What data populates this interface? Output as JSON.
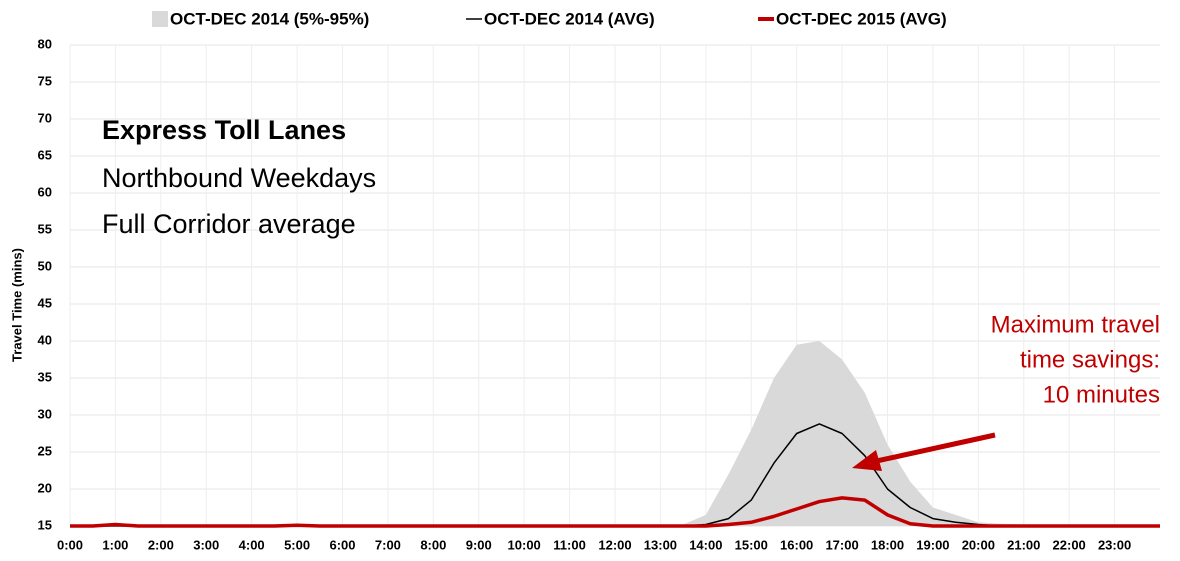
{
  "chart_data": {
    "type": "line",
    "legend": "top",
    "y_label": "Travel Time (mins)",
    "ylim": [
      15,
      80
    ],
    "yticks": [
      15,
      20,
      25,
      30,
      35,
      40,
      45,
      50,
      55,
      60,
      65,
      70,
      75,
      80
    ],
    "xlim": [
      0,
      24
    ],
    "xticks": [
      {
        "value": 0,
        "label": "0:00"
      },
      {
        "value": 1,
        "label": "1:00"
      },
      {
        "value": 2,
        "label": "2:00"
      },
      {
        "value": 3,
        "label": "3:00"
      },
      {
        "value": 4,
        "label": "4:00"
      },
      {
        "value": 5,
        "label": "5:00"
      },
      {
        "value": 6,
        "label": "6:00"
      },
      {
        "value": 7,
        "label": "7:00"
      },
      {
        "value": 8,
        "label": "8:00"
      },
      {
        "value": 9,
        "label": "9:00"
      },
      {
        "value": 10,
        "label": "10:00"
      },
      {
        "value": 11,
        "label": "11:00"
      },
      {
        "value": 12,
        "label": "12:00"
      },
      {
        "value": 13,
        "label": "13:00"
      },
      {
        "value": 14,
        "label": "14:00"
      },
      {
        "value": 15,
        "label": "15:00"
      },
      {
        "value": 16,
        "label": "16:00"
      },
      {
        "value": 17,
        "label": "17:00"
      },
      {
        "value": 18,
        "label": "18:00"
      },
      {
        "value": 19,
        "label": "19:00"
      },
      {
        "value": 20,
        "label": "20:00"
      },
      {
        "value": 21,
        "label": "21:00"
      },
      {
        "value": 22,
        "label": "22:00"
      },
      {
        "value": 23,
        "label": "23:00"
      }
    ],
    "x": [
      0,
      0.5,
      1,
      1.5,
      2,
      2.5,
      3,
      3.5,
      4,
      4.5,
      5,
      5.5,
      6,
      6.5,
      7,
      7.5,
      8,
      8.5,
      9,
      9.5,
      10,
      10.5,
      11,
      11.5,
      12,
      12.5,
      13,
      13.5,
      14,
      14.5,
      15,
      15.5,
      16,
      16.5,
      17,
      17.5,
      18,
      18.5,
      19,
      19.5,
      20,
      20.5,
      21,
      21.5,
      22,
      22.5,
      23,
      23.5,
      24
    ],
    "series": [
      {
        "name": "OCT-DEC 2014 (5%-95%)",
        "color": "#d9d9d9",
        "kind": "band",
        "lower": [
          15,
          15,
          15,
          15,
          15,
          15,
          15,
          15,
          15,
          15,
          15,
          15,
          15,
          15,
          15,
          15,
          15,
          15,
          15,
          15,
          15,
          15,
          15,
          15,
          15,
          15,
          15,
          15,
          15,
          15,
          15,
          15,
          15,
          15,
          15,
          15,
          15,
          15,
          15,
          15,
          15,
          15,
          15,
          15,
          15,
          15,
          15,
          15,
          15
        ],
        "upper": [
          15,
          15,
          15.2,
          15,
          15,
          15,
          15,
          15,
          15,
          15,
          15.2,
          15,
          15,
          15,
          15,
          15,
          15,
          15,
          15,
          15,
          15,
          15,
          15,
          15,
          15,
          15,
          15,
          15.2,
          16.5,
          22,
          28,
          35,
          39.5,
          40,
          37.5,
          33,
          26,
          21,
          17.5,
          16.5,
          15.5,
          15.3,
          15.2,
          15,
          15,
          15,
          15,
          15,
          15
        ]
      },
      {
        "name": "OCT-DEC 2014 (AVG)",
        "color": "#000000",
        "kind": "line",
        "values": [
          15,
          15,
          15,
          15,
          15,
          15,
          15,
          15,
          15,
          15,
          15,
          15,
          15,
          15,
          15,
          15,
          15,
          15,
          15,
          15,
          15,
          15,
          15,
          15,
          15,
          15,
          15,
          15,
          15.2,
          16,
          18.5,
          23.5,
          27.5,
          28.8,
          27.5,
          24.5,
          20,
          17.5,
          16,
          15.5,
          15.2,
          15,
          15,
          15,
          15,
          15,
          15,
          15,
          15
        ]
      },
      {
        "name": "OCT-DEC 2015 (AVG)",
        "color": "#c00000",
        "kind": "line",
        "values": [
          15,
          15,
          15.2,
          15,
          15,
          15,
          15,
          15,
          15,
          15,
          15.1,
          15,
          15,
          15,
          15,
          15,
          15,
          15,
          15,
          15,
          15,
          15,
          15,
          15,
          15,
          15,
          15,
          15,
          15,
          15.2,
          15.5,
          16.3,
          17.3,
          18.3,
          18.8,
          18.5,
          16.5,
          15.3,
          15,
          15,
          15,
          15,
          15,
          15,
          15,
          15,
          15,
          15,
          15
        ]
      }
    ],
    "annotations": [
      "Express Toll Lanes",
      "Northbound Weekdays",
      "Full Corridor average",
      "Maximum  travel",
      "time savings:",
      "10 minutes"
    ]
  }
}
